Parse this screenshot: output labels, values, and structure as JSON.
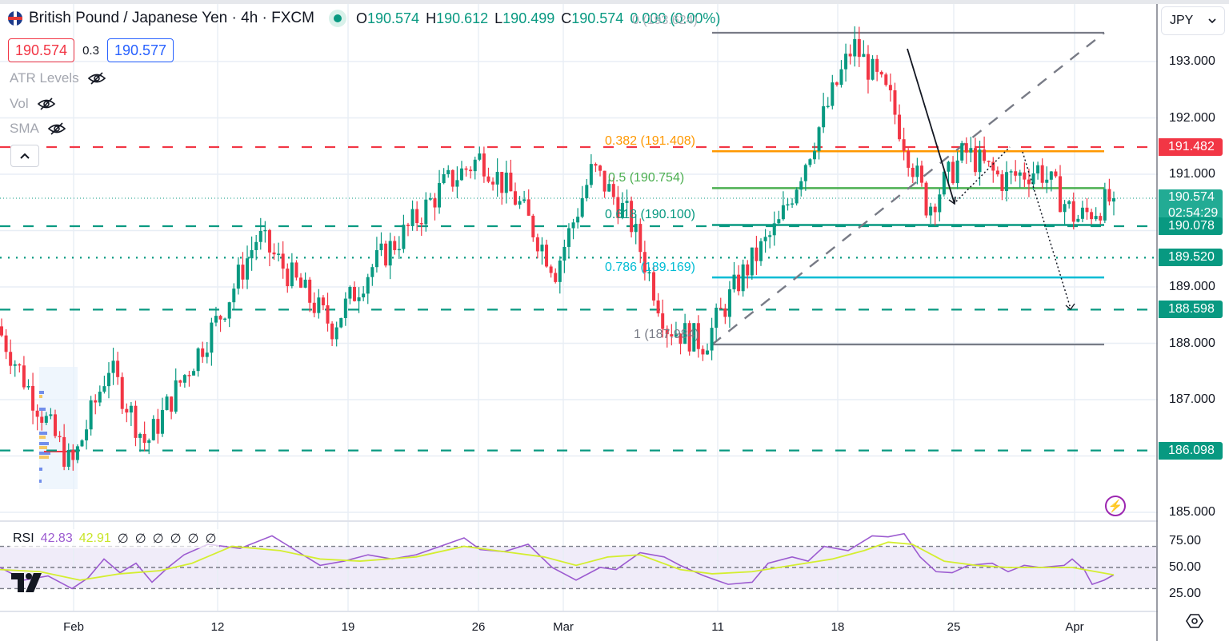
{
  "header": {
    "symbol_title": "British Pound / Japanese Yen · 4h · FXCM",
    "ohlc": {
      "o_label": "O",
      "o": "190.574",
      "h_label": "H",
      "h": "190.612",
      "l_label": "L",
      "l": "190.499",
      "c_label": "C",
      "c": "190.574",
      "change": "0.000 (0.00%)"
    },
    "ghost_text": "0 (193.624)",
    "sell_price": "190.574",
    "spread": "0.3",
    "buy_price": "190.577"
  },
  "indicators": [
    {
      "label": "ATR Levels",
      "visible": false
    },
    {
      "label": "Vol",
      "visible": false
    },
    {
      "label": "SMA",
      "visible": false
    }
  ],
  "currency_selector": {
    "value": "JPY"
  },
  "colors": {
    "up": "#089981",
    "down": "#f23645",
    "grid": "#e8eef5",
    "fib_0382": "#ff9800",
    "fib_05": "#4caf50",
    "fib_0618": "#089981",
    "fib_0786": "#00bcd4",
    "fib_edge": "#787b86",
    "resistance": "#f23645",
    "support": "#089981",
    "rsi_line": "#9c5bd0",
    "rsi_ma": "#d4ee30",
    "rsi_band": "#f0ecf9"
  },
  "price_axis": {
    "ticks": [
      "193.000",
      "192.000",
      "191.000",
      "189.000",
      "188.000",
      "187.000",
      "185.000"
    ],
    "tags": [
      {
        "value": "191.482",
        "color": "#f23645"
      },
      {
        "value": "190.574",
        "sub": "02:54:29",
        "color": "#22ab94"
      },
      {
        "value": "190.078",
        "color": "#089981"
      },
      {
        "value": "189.520",
        "color": "#089981"
      },
      {
        "value": "188.598",
        "color": "#089981"
      },
      {
        "value": "186.098",
        "color": "#089981"
      }
    ]
  },
  "time_axis": {
    "labels": [
      "Feb",
      "12",
      "19",
      "26",
      "Mar",
      "11",
      "18",
      "25",
      "Apr"
    ]
  },
  "fibonacci": {
    "levels": [
      {
        "label": "0.382 (191.408)",
        "price": 191.408
      },
      {
        "label": "0.5 (190.754)",
        "price": 190.754
      },
      {
        "label": "0.618 (190.100)",
        "price": 190.1
      },
      {
        "label": "0.786 (189.169)",
        "price": 189.169
      },
      {
        "label": "1 (187.984)",
        "price": 187.984
      }
    ],
    "top_label": "0 (193.624)"
  },
  "rsi": {
    "label": "RSI",
    "value": "42.83",
    "ma_value": "42.91",
    "placeholders": [
      "∅",
      "∅",
      "∅",
      "∅",
      "∅",
      "∅"
    ],
    "ticks": [
      "75.00",
      "50.00",
      "25.00"
    ]
  },
  "chart_data": {
    "type": "candlestick",
    "title": "British Pound / Japanese Yen · 4h · FXCM",
    "xlabel": "",
    "ylabel": "JPY",
    "ylim": [
      184.8,
      193.9
    ],
    "x_ticks": [
      "Feb",
      "12",
      "19",
      "26",
      "Mar",
      "11",
      "18",
      "25",
      "Apr"
    ],
    "last_price": 190.574,
    "horizontal_levels": {
      "resistance_dashed_red": 191.482,
      "support_dashed_green": [
        190.078,
        188.598,
        186.098
      ],
      "dotted_green": 189.52
    },
    "fibonacci_retracement": {
      "0": 193.624,
      "0.382": 191.408,
      "0.5": 190.754,
      "0.618": 190.1,
      "0.786": 189.169,
      "1": 187.984
    },
    "approx_close_path": [
      {
        "date": "Jan 29",
        "price": 188.3
      },
      {
        "date": "Jan 31",
        "price": 187.0
      },
      {
        "date": "Feb 1",
        "price": 185.8
      },
      {
        "date": "Feb 2",
        "price": 187.6
      },
      {
        "date": "Feb 5",
        "price": 186.2
      },
      {
        "date": "Feb 8",
        "price": 187.4
      },
      {
        "date": "Feb 9",
        "price": 188.5
      },
      {
        "date": "Feb 13",
        "price": 189.9
      },
      {
        "date": "Feb 14",
        "price": 189.1
      },
      {
        "date": "Feb 16",
        "price": 188.3
      },
      {
        "date": "Feb 19",
        "price": 189.3
      },
      {
        "date": "Feb 22",
        "price": 190.0
      },
      {
        "date": "Feb 23",
        "price": 190.8
      },
      {
        "date": "Feb 26",
        "price": 191.3
      },
      {
        "date": "Feb 28",
        "price": 190.5
      },
      {
        "date": "Mar 1",
        "price": 189.3
      },
      {
        "date": "Mar 4",
        "price": 191.1
      },
      {
        "date": "Mar 7",
        "price": 190.2
      },
      {
        "date": "Mar 8",
        "price": 188.3
      },
      {
        "date": "Mar 11",
        "price": 188.0
      },
      {
        "date": "Mar 14",
        "price": 189.2
      },
      {
        "date": "Mar 18",
        "price": 190.1
      },
      {
        "date": "Mar 19",
        "price": 191.7
      },
      {
        "date": "Mar 21",
        "price": 193.3
      },
      {
        "date": "Mar 22",
        "price": 192.3
      },
      {
        "date": "Mar 25",
        "price": 190.4
      },
      {
        "date": "Mar 27",
        "price": 191.4
      },
      {
        "date": "Mar 29",
        "price": 190.9
      },
      {
        "date": "Apr 1",
        "price": 191.1
      },
      {
        "date": "Apr 2",
        "price": 190.2
      },
      {
        "date": "Apr 3",
        "price": 190.574
      }
    ],
    "rsi_series": {
      "ylim": [
        20,
        85
      ],
      "levels": [
        70,
        50,
        30
      ],
      "last": 42.83,
      "ma_last": 42.91
    }
  }
}
